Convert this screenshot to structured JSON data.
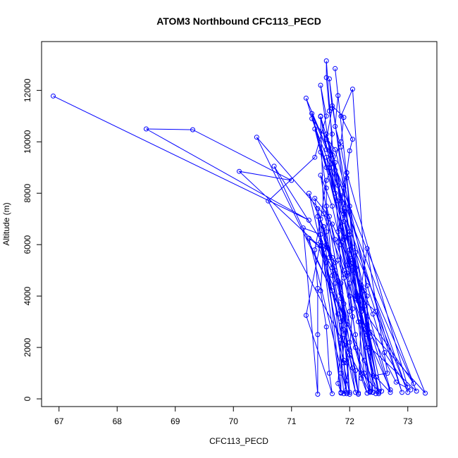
{
  "chart_data": {
    "type": "line",
    "title": "ATOM3 Northbound CFC113_PECD",
    "xlabel": "CFC113_PECD",
    "ylabel": "Altitude (m)",
    "xlim": [
      66.7,
      73.5
    ],
    "ylim": [
      -300,
      13900
    ],
    "xticks": [
      67,
      68,
      69,
      70,
      71,
      72,
      73
    ],
    "yticks": [
      0,
      2000,
      4000,
      6000,
      8000,
      10000,
      12000
    ],
    "marker": "open-circle",
    "line_color": "#0000ff",
    "series": [
      {
        "points": [
          [
            66.9,
            11780
          ],
          [
            71.3,
            6950
          ],
          [
            68.5,
            10500
          ],
          [
            69.3,
            10470
          ],
          [
            71.0,
            8500
          ],
          [
            70.1,
            8850
          ],
          [
            71.45,
            6000
          ],
          [
            71.9,
            3250
          ],
          [
            70.4,
            10180
          ],
          [
            71.7,
            6800
          ],
          [
            72.3,
            4000
          ],
          [
            72.3,
            2000
          ],
          [
            72.5,
            250
          ],
          [
            70.7,
            9050
          ],
          [
            71.75,
            5300
          ],
          [
            72.1,
            2000
          ],
          [
            72.35,
            250
          ],
          [
            70.6,
            7700
          ],
          [
            71.4,
            9400
          ],
          [
            71.6,
            11000
          ],
          [
            71.5,
            12200
          ],
          [
            71.75,
            8000
          ],
          [
            71.25,
            11700
          ],
          [
            71.9,
            8200
          ],
          [
            72.0,
            5600
          ],
          [
            72.2,
            3000
          ],
          [
            73.3,
            220
          ],
          [
            71.35,
            11100
          ],
          [
            71.6,
            9000
          ],
          [
            71.9,
            6200
          ],
          [
            72.1,
            3900
          ],
          [
            73.1,
            600
          ],
          [
            71.35,
            10900
          ],
          [
            71.75,
            9700
          ],
          [
            72.0,
            7500
          ],
          [
            72.3,
            4400
          ],
          [
            72.9,
            250
          ],
          [
            71.5,
            10980
          ],
          [
            71.55,
            7200
          ],
          [
            71.9,
            5000
          ],
          [
            72.25,
            2700
          ],
          [
            72.7,
            350
          ],
          [
            71.4,
            10500
          ],
          [
            71.5,
            9600
          ],
          [
            71.6,
            8200
          ],
          [
            71.6,
            6500
          ],
          [
            71.75,
            4500
          ],
          [
            71.9,
            2500
          ],
          [
            72.0,
            250
          ],
          [
            71.6,
            13150
          ],
          [
            71.6,
            12500
          ],
          [
            71.65,
            11200
          ],
          [
            71.7,
            10300
          ],
          [
            71.65,
            9000
          ],
          [
            71.8,
            7700
          ],
          [
            71.9,
            6300
          ],
          [
            72.05,
            5000
          ],
          [
            72.2,
            3500
          ],
          [
            72.25,
            1500
          ],
          [
            72.35,
            280
          ],
          [
            71.65,
            12450
          ],
          [
            71.7,
            11300
          ],
          [
            71.6,
            10100
          ],
          [
            71.7,
            9500
          ],
          [
            71.8,
            8300
          ],
          [
            71.85,
            6700
          ],
          [
            72.0,
            5200
          ],
          [
            72.2,
            3400
          ],
          [
            72.35,
            300
          ],
          [
            71.75,
            12850
          ],
          [
            71.8,
            11800
          ],
          [
            71.75,
            10600
          ],
          [
            71.85,
            9800
          ],
          [
            71.95,
            8600
          ],
          [
            72.0,
            7300
          ],
          [
            72.05,
            5900
          ],
          [
            72.2,
            4100
          ],
          [
            72.35,
            1800
          ],
          [
            72.4,
            260
          ],
          [
            72.05,
            12050
          ],
          [
            71.85,
            11000
          ],
          [
            72.05,
            10100
          ],
          [
            72.0,
            9650
          ],
          [
            71.95,
            8800
          ],
          [
            71.9,
            7400
          ],
          [
            71.95,
            6300
          ],
          [
            72.1,
            4900
          ],
          [
            72.3,
            2900
          ],
          [
            72.5,
            200
          ],
          [
            71.7,
            11400
          ],
          [
            71.9,
            10950
          ],
          [
            71.85,
            10000
          ],
          [
            71.6,
            8500
          ],
          [
            71.5,
            7000
          ],
          [
            71.4,
            5800
          ],
          [
            71.45,
            4300
          ],
          [
            71.45,
            2500
          ],
          [
            71.45,
            180
          ],
          [
            71.2,
            6650
          ],
          [
            71.5,
            6400
          ],
          [
            71.6,
            5300
          ],
          [
            71.7,
            4200
          ],
          [
            71.8,
            3300
          ],
          [
            71.9,
            1500
          ],
          [
            71.95,
            250
          ],
          [
            71.3,
            6250
          ],
          [
            71.55,
            5800
          ],
          [
            71.5,
            4200
          ],
          [
            71.6,
            2800
          ],
          [
            71.65,
            1000
          ],
          [
            71.7,
            200
          ],
          [
            71.25,
            3250
          ],
          [
            71.5,
            6100
          ],
          [
            71.7,
            4800
          ],
          [
            71.85,
            3000
          ],
          [
            71.9,
            1400
          ],
          [
            71.95,
            200
          ],
          [
            71.4,
            7800
          ],
          [
            71.65,
            7100
          ],
          [
            71.8,
            5400
          ],
          [
            72.0,
            4000
          ],
          [
            72.1,
            2500
          ],
          [
            72.2,
            800
          ],
          [
            72.3,
            220
          ],
          [
            71.45,
            7400
          ],
          [
            71.6,
            6000
          ],
          [
            71.8,
            4600
          ],
          [
            71.9,
            3100
          ],
          [
            72.0,
            1700
          ],
          [
            72.1,
            250
          ],
          [
            71.3,
            8000
          ],
          [
            71.55,
            6700
          ],
          [
            71.7,
            5500
          ],
          [
            71.85,
            4100
          ],
          [
            71.9,
            2700
          ],
          [
            72.05,
            1200
          ],
          [
            72.15,
            230
          ],
          [
            71.5,
            8700
          ],
          [
            71.7,
            7500
          ],
          [
            71.85,
            6000
          ],
          [
            72.0,
            4500
          ],
          [
            72.15,
            3000
          ],
          [
            72.25,
            1000
          ],
          [
            72.4,
            250
          ],
          [
            71.6,
            9400
          ],
          [
            71.75,
            8000
          ],
          [
            71.9,
            6900
          ],
          [
            72.05,
            5400
          ],
          [
            72.15,
            3800
          ],
          [
            72.3,
            2000
          ],
          [
            72.45,
            200
          ],
          [
            71.5,
            11000
          ],
          [
            71.6,
            9700
          ],
          [
            71.75,
            8900
          ],
          [
            71.9,
            7200
          ],
          [
            72.0,
            5800
          ],
          [
            72.2,
            4300
          ],
          [
            72.35,
            2400
          ],
          [
            72.55,
            300
          ],
          [
            71.6,
            10300
          ],
          [
            71.75,
            9200
          ],
          [
            71.85,
            7900
          ],
          [
            72.0,
            6500
          ],
          [
            72.1,
            5100
          ],
          [
            72.25,
            3600
          ],
          [
            72.4,
            900
          ],
          [
            72.65,
            1000
          ],
          [
            72.3,
            5850
          ],
          [
            72.2,
            4400
          ],
          [
            72.4,
            3300
          ],
          [
            72.6,
            1800
          ],
          [
            73.0,
            450
          ],
          [
            71.95,
            8800
          ],
          [
            71.85,
            7700
          ],
          [
            71.8,
            6100
          ],
          [
            71.9,
            4700
          ],
          [
            72.05,
            3200
          ],
          [
            72.2,
            1000
          ],
          [
            72.5,
            300
          ],
          [
            72.0,
            6400
          ],
          [
            72.05,
            5300
          ],
          [
            72.1,
            4000
          ],
          [
            72.3,
            2500
          ],
          [
            72.45,
            850
          ],
          [
            72.7,
            250
          ],
          [
            71.8,
            6500
          ],
          [
            71.95,
            5200
          ],
          [
            72.15,
            4000
          ],
          [
            72.45,
            3400
          ],
          [
            73.0,
            250
          ],
          [
            71.9,
            7300
          ],
          [
            71.85,
            6000
          ],
          [
            71.95,
            4800
          ],
          [
            72.05,
            3500
          ],
          [
            72.0,
            1900
          ],
          [
            71.95,
            700
          ],
          [
            71.9,
            200
          ],
          [
            71.6,
            7500
          ],
          [
            71.75,
            6200
          ],
          [
            71.95,
            4900
          ],
          [
            72.0,
            3400
          ],
          [
            71.9,
            2100
          ],
          [
            71.85,
            1000
          ],
          [
            71.85,
            220
          ],
          [
            71.45,
            7100
          ],
          [
            71.6,
            5900
          ],
          [
            71.75,
            5000
          ],
          [
            71.9,
            3700
          ],
          [
            71.85,
            2300
          ],
          [
            71.8,
            600
          ],
          [
            71.85,
            250
          ],
          [
            71.55,
            6700
          ],
          [
            71.65,
            5500
          ],
          [
            71.85,
            4500
          ],
          [
            71.95,
            2900
          ],
          [
            71.95,
            1400
          ],
          [
            72.0,
            180
          ],
          [
            71.5,
            5950
          ],
          [
            71.7,
            5100
          ],
          [
            71.85,
            3900
          ],
          [
            72.0,
            2200
          ],
          [
            72.1,
            1100
          ],
          [
            72.15,
            180
          ],
          [
            72.2,
            3400
          ],
          [
            72.35,
            2000
          ],
          [
            73.15,
            300
          ],
          [
            72.1,
            5700
          ],
          [
            72.25,
            4200
          ],
          [
            72.35,
            2600
          ],
          [
            72.8,
            650
          ],
          [
            73.05,
            350
          ]
        ]
      }
    ]
  }
}
